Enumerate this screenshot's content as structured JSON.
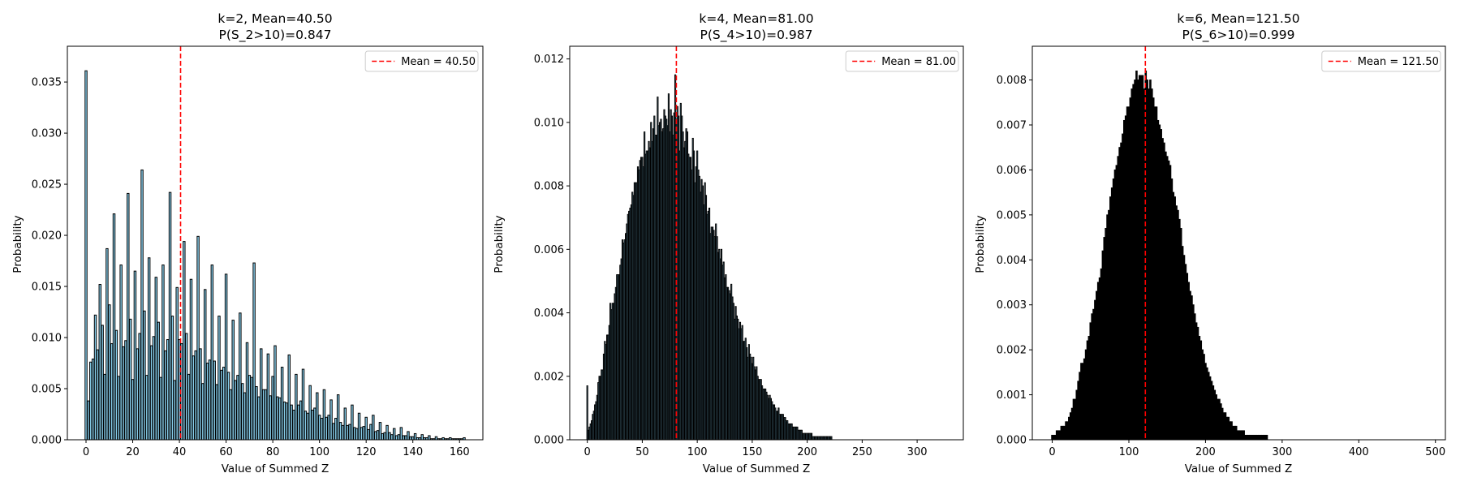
{
  "chart_data": [
    {
      "type": "bar",
      "title_lines": [
        "k=2, Mean=40.50",
        "P(S_2>10)=0.847"
      ],
      "xlabel": "Value of Summed Z",
      "ylabel": "Probability",
      "xlim": [
        -8,
        170
      ],
      "ylim": [
        0,
        0.0385
      ],
      "xticks": [
        0,
        20,
        40,
        60,
        80,
        100,
        120,
        140,
        160
      ],
      "yticks": [
        0.0,
        0.005,
        0.01,
        0.015,
        0.02,
        0.025,
        0.03,
        0.035
      ],
      "ytick_labels": [
        "0.000",
        "0.005",
        "0.010",
        "0.015",
        "0.020",
        "0.025",
        "0.030",
        "0.035"
      ],
      "bar_fill": "#87ceeb",
      "bar_edge": "#000000",
      "x": [
        0,
        1,
        2,
        3,
        4,
        5,
        6,
        7,
        8,
        9,
        10,
        11,
        12,
        13,
        14,
        15,
        16,
        17,
        18,
        19,
        20,
        21,
        22,
        23,
        24,
        25,
        26,
        27,
        28,
        29,
        30,
        31,
        32,
        33,
        34,
        35,
        36,
        37,
        38,
        39,
        40,
        41,
        42,
        43,
        44,
        45,
        46,
        47,
        48,
        49,
        50,
        51,
        52,
        53,
        54,
        55,
        56,
        57,
        58,
        59,
        60,
        61,
        62,
        63,
        64,
        65,
        66,
        67,
        68,
        69,
        70,
        71,
        72,
        73,
        74,
        75,
        76,
        77,
        78,
        79,
        80,
        81,
        82,
        83,
        84,
        85,
        86,
        87,
        88,
        89,
        90,
        91,
        92,
        93,
        94,
        95,
        96,
        97,
        98,
        99,
        100,
        101,
        102,
        103,
        104,
        105,
        106,
        107,
        108,
        109,
        110,
        111,
        112,
        113,
        114,
        115,
        116,
        117,
        118,
        119,
        120,
        121,
        122,
        123,
        124,
        125,
        126,
        127,
        128,
        129,
        130,
        131,
        132,
        133,
        134,
        135,
        136,
        137,
        138,
        139,
        140,
        141,
        142,
        143,
        144,
        145,
        146,
        147,
        148,
        149,
        150,
        151,
        152,
        153,
        154,
        155,
        156,
        157,
        158,
        159,
        160,
        161,
        162
      ],
      "values": [
        0.0361,
        0.0038,
        0.0076,
        0.0079,
        0.0122,
        0.0088,
        0.0152,
        0.0112,
        0.0064,
        0.0187,
        0.0132,
        0.0094,
        0.0221,
        0.0107,
        0.0062,
        0.0171,
        0.0091,
        0.0097,
        0.0241,
        0.0118,
        0.0059,
        0.0165,
        0.0089,
        0.0104,
        0.0264,
        0.0126,
        0.0063,
        0.0178,
        0.0092,
        0.0101,
        0.0159,
        0.0115,
        0.0061,
        0.0171,
        0.0087,
        0.0098,
        0.0242,
        0.0121,
        0.0058,
        0.0149,
        0.0098,
        0.0094,
        0.0194,
        0.0104,
        0.0064,
        0.0157,
        0.0082,
        0.0087,
        0.0199,
        0.0089,
        0.0055,
        0.0147,
        0.0075,
        0.0078,
        0.0171,
        0.0077,
        0.0054,
        0.0121,
        0.0068,
        0.0071,
        0.0162,
        0.0066,
        0.0049,
        0.0117,
        0.0058,
        0.0063,
        0.0124,
        0.0055,
        0.0046,
        0.0095,
        0.0063,
        0.0061,
        0.0173,
        0.0052,
        0.0042,
        0.0089,
        0.0049,
        0.0049,
        0.0084,
        0.0043,
        0.0062,
        0.0092,
        0.0042,
        0.0041,
        0.0071,
        0.0037,
        0.0036,
        0.0083,
        0.0034,
        0.0029,
        0.0064,
        0.0034,
        0.0038,
        0.0069,
        0.0028,
        0.0026,
        0.0053,
        0.0029,
        0.0031,
        0.0046,
        0.0024,
        0.0021,
        0.0049,
        0.0022,
        0.0024,
        0.0039,
        0.0016,
        0.0021,
        0.0044,
        0.0017,
        0.0014,
        0.0031,
        0.0014,
        0.0015,
        0.0034,
        0.0012,
        0.0011,
        0.0026,
        0.0012,
        0.0013,
        0.0022,
        0.001,
        0.0015,
        0.0024,
        0.0008,
        0.0009,
        0.0017,
        0.0006,
        0.0007,
        0.0014,
        0.0007,
        0.0005,
        0.0011,
        0.0004,
        0.0005,
        0.0012,
        0.0004,
        0.0004,
        0.0008,
        0.0003,
        0.0003,
        0.0006,
        0.0002,
        0.0002,
        0.0005,
        0.0002,
        0.0002,
        0.0004,
        0.0001,
        0.0001,
        0.0003,
        0.0001,
        0.0001,
        0.0002,
        0.0001,
        0.0001,
        0.0002,
        0.0001,
        0.0001,
        0.0001,
        0.0001,
        0.0001,
        0.0002
      ],
      "mean_line": {
        "x": 40.5,
        "label": "Mean = 40.50",
        "color": "#ff0000"
      },
      "legend_position": "top-right"
    },
    {
      "type": "bar",
      "title_lines": [
        "k=4, Mean=81.00",
        "P(S_4>10)=0.987"
      ],
      "xlabel": "Value of Summed Z",
      "ylabel": "Probability",
      "xlim": [
        -16,
        342
      ],
      "ylim": [
        0,
        0.0124
      ],
      "xticks": [
        0,
        50,
        100,
        150,
        200,
        250,
        300
      ],
      "yticks": [
        0.0,
        0.002,
        0.004,
        0.006,
        0.008,
        0.01,
        0.012
      ],
      "ytick_labels": [
        "0.000",
        "0.002",
        "0.004",
        "0.006",
        "0.008",
        "0.010",
        "0.012"
      ],
      "bar_fill": "#87ceeb",
      "bar_edge": "#000000",
      "x_start": 0,
      "x_step": 1,
      "values": [
        0.0017,
        0.0003,
        0.0004,
        0.0005,
        0.0006,
        0.0008,
        0.0009,
        0.0011,
        0.0012,
        0.0014,
        0.0018,
        0.002,
        0.002,
        0.0022,
        0.0022,
        0.0027,
        0.0031,
        0.003,
        0.0033,
        0.0033,
        0.0036,
        0.0043,
        0.0041,
        0.0043,
        0.0043,
        0.0046,
        0.0048,
        0.0052,
        0.0052,
        0.0052,
        0.0055,
        0.0057,
        0.0063,
        0.0062,
        0.0063,
        0.0065,
        0.0068,
        0.0071,
        0.0072,
        0.0073,
        0.0074,
        0.0078,
        0.0077,
        0.0081,
        0.0081,
        0.0081,
        0.0086,
        0.0085,
        0.0088,
        0.0089,
        0.0089,
        0.0086,
        0.0097,
        0.009,
        0.0091,
        0.0091,
        0.0094,
        0.0092,
        0.01,
        0.0094,
        0.0098,
        0.0102,
        0.0096,
        0.0096,
        0.0108,
        0.0099,
        0.01,
        0.0101,
        0.0097,
        0.0098,
        0.0104,
        0.0102,
        0.0101,
        0.0099,
        0.0109,
        0.0097,
        0.0104,
        0.0102,
        0.0096,
        0.0103,
        0.0115,
        0.0101,
        0.0105,
        0.0102,
        0.0091,
        0.0106,
        0.0102,
        0.0097,
        0.0092,
        0.0094,
        0.0098,
        0.0097,
        0.009,
        0.0089,
        0.0089,
        0.0085,
        0.0095,
        0.0091,
        0.0081,
        0.0086,
        0.0091,
        0.0085,
        0.0083,
        0.0078,
        0.0082,
        0.008,
        0.0074,
        0.0081,
        0.0077,
        0.0071,
        0.0072,
        0.0073,
        0.0065,
        0.0067,
        0.0067,
        0.0066,
        0.0064,
        0.0068,
        0.0064,
        0.0059,
        0.006,
        0.0057,
        0.006,
        0.0055,
        0.0056,
        0.0051,
        0.0052,
        0.0048,
        0.0048,
        0.0047,
        0.0046,
        0.0049,
        0.0045,
        0.0043,
        0.0038,
        0.0042,
        0.0039,
        0.0038,
        0.0035,
        0.0037,
        0.0035,
        0.0036,
        0.0031,
        0.0031,
        0.0032,
        0.0029,
        0.0026,
        0.003,
        0.0027,
        0.0026,
        0.0024,
        0.0026,
        0.0023,
        0.0022,
        0.0023,
        0.002,
        0.0019,
        0.0019,
        0.0019,
        0.0017,
        0.0016,
        0.0016,
        0.0016,
        0.0015,
        0.0014,
        0.0013,
        0.0014,
        0.0013,
        0.0012,
        0.0011,
        0.0011,
        0.001,
        0.0009,
        0.0009,
        0.001,
        0.0008,
        0.0008,
        0.0008,
        0.0008,
        0.0007,
        0.0007,
        0.0006,
        0.0006,
        0.0005,
        0.0005,
        0.0005,
        0.0005,
        0.0004,
        0.0004,
        0.0004,
        0.0004,
        0.0004,
        0.0003,
        0.0003,
        0.0003,
        0.0003,
        0.0002,
        0.0002,
        0.0002,
        0.0002,
        0.0002,
        0.0002,
        0.0002,
        0.0002,
        0.0002,
        0.0001,
        0.0001,
        0.0001,
        0.0001,
        0.0001,
        0.0001,
        0.0001,
        0.0001,
        0.0001,
        0.0001,
        0.0001,
        0.0001,
        0.0001,
        0.0001,
        0.0001,
        0.0001,
        0.0001,
        0.0001,
        0,
        0,
        0,
        0,
        0,
        0,
        0,
        0,
        0,
        0,
        0,
        0,
        0,
        0,
        0,
        0,
        0,
        0,
        0,
        0,
        0,
        0,
        0,
        0,
        0,
        0,
        0,
        0,
        0,
        0,
        0,
        0,
        0,
        0,
        0,
        0,
        0,
        0,
        0,
        0,
        0,
        0,
        0,
        0,
        0,
        0,
        0,
        0,
        0,
        0,
        0,
        0,
        0,
        0,
        0,
        0,
        0,
        0,
        0,
        0,
        0,
        0,
        0,
        0,
        0,
        0,
        0,
        0,
        0,
        0,
        0,
        0,
        0,
        0,
        0,
        0,
        0,
        0,
        0,
        0,
        0,
        0,
        0,
        0,
        0,
        0,
        0,
        0,
        0,
        0,
        0,
        0,
        0,
        0,
        0,
        0,
        0,
        0,
        0,
        0,
        0,
        0,
        0,
        0,
        0,
        0,
        0,
        0,
        0,
        0,
        0,
        0,
        0
      ],
      "mean_line": {
        "x": 81.0,
        "label": "Mean = 81.00",
        "color": "#ff0000"
      },
      "legend_position": "top-right"
    },
    {
      "type": "bar",
      "title_lines": [
        "k=6, Mean=121.50",
        "P(S_6>10)=0.999"
      ],
      "xlabel": "Value of Summed Z",
      "ylabel": "Probability",
      "xlim": [
        -26,
        513
      ],
      "ylim": [
        0,
        0.00875
      ],
      "xticks": [
        0,
        100,
        200,
        300,
        400,
        500
      ],
      "yticks": [
        0.0,
        0.001,
        0.002,
        0.003,
        0.004,
        0.005,
        0.006,
        0.007,
        0.008
      ],
      "ytick_labels": [
        "0.000",
        "0.001",
        "0.002",
        "0.003",
        "0.004",
        "0.005",
        "0.006",
        "0.007",
        "0.008"
      ],
      "bar_fill": "#000000",
      "bar_edge": "#000000",
      "x_start": 0,
      "x_step": 2,
      "values": [
        0.0001,
        0.0001,
        0.0001,
        0.0002,
        0.0002,
        0.0002,
        0.0003,
        0.0003,
        0.0003,
        0.0004,
        0.0004,
        0.0005,
        0.0006,
        0.0007,
        0.0009,
        0.0009,
        0.0011,
        0.0013,
        0.0015,
        0.0017,
        0.0017,
        0.0018,
        0.002,
        0.0022,
        0.0023,
        0.0026,
        0.0028,
        0.0029,
        0.0031,
        0.0033,
        0.0035,
        0.0036,
        0.0038,
        0.0042,
        0.0045,
        0.0047,
        0.005,
        0.0051,
        0.0054,
        0.0056,
        0.0058,
        0.006,
        0.0061,
        0.0063,
        0.0065,
        0.0066,
        0.0068,
        0.0071,
        0.0072,
        0.0074,
        0.0074,
        0.0076,
        0.0078,
        0.0079,
        0.008,
        0.0082,
        0.008,
        0.0081,
        0.0081,
        0.0081,
        0.0078,
        0.0082,
        0.008,
        0.0078,
        0.008,
        0.0078,
        0.0076,
        0.0074,
        0.0074,
        0.0071,
        0.007,
        0.0069,
        0.0067,
        0.0066,
        0.0064,
        0.0063,
        0.0062,
        0.0061,
        0.0058,
        0.0055,
        0.0054,
        0.0052,
        0.0051,
        0.0049,
        0.0047,
        0.0043,
        0.0041,
        0.0039,
        0.0037,
        0.0035,
        0.0033,
        0.0032,
        0.003,
        0.0028,
        0.0026,
        0.0025,
        0.0023,
        0.0022,
        0.002,
        0.0019,
        0.0017,
        0.0016,
        0.0015,
        0.0014,
        0.0013,
        0.0012,
        0.0011,
        0.001,
        0.0009,
        0.0009,
        0.0008,
        0.0007,
        0.0006,
        0.0006,
        0.0005,
        0.0005,
        0.0004,
        0.0004,
        0.0003,
        0.0003,
        0.0003,
        0.0002,
        0.0002,
        0.0002,
        0.0002,
        0.0002,
        0.0001,
        0.0001,
        0.0001,
        0.0001,
        0.0001,
        0.0001,
        0.0001,
        0.0001,
        0.0001,
        0.0001,
        0.0001,
        0.0001,
        0.0001,
        0.0001,
        0.0001,
        0,
        0,
        0,
        0,
        0,
        0,
        0,
        0,
        0,
        0,
        0,
        0,
        0,
        0,
        0,
        0,
        0,
        0,
        0,
        0,
        0,
        0,
        0,
        0,
        0,
        0,
        0,
        0,
        0,
        0,
        0,
        0,
        0,
        0,
        0,
        0,
        0,
        0,
        0,
        0,
        0,
        0,
        0,
        0,
        0,
        0,
        0,
        0,
        0,
        0,
        0,
        0,
        0,
        0,
        0,
        0,
        0,
        0,
        0,
        0,
        0,
        0,
        0,
        0,
        0,
        0,
        0,
        0,
        0,
        0,
        0,
        0,
        0,
        0,
        0,
        0,
        0,
        0,
        0,
        0,
        0,
        0,
        0,
        0,
        0,
        0,
        0,
        0,
        0,
        0,
        0,
        0,
        0,
        0,
        0,
        0,
        0,
        0,
        0,
        0,
        0,
        0,
        0,
        0,
        0,
        0,
        0,
        0,
        0,
        0,
        0,
        0,
        0,
        0,
        0,
        0,
        0,
        0,
        0,
        0,
        0,
        0,
        0,
        0,
        0,
        0,
        0,
        0,
        0,
        0,
        0,
        0,
        0,
        0,
        0
      ],
      "mean_line": {
        "x": 121.5,
        "label": "Mean = 121.50",
        "color": "#ff0000"
      },
      "legend_position": "top-right"
    }
  ]
}
